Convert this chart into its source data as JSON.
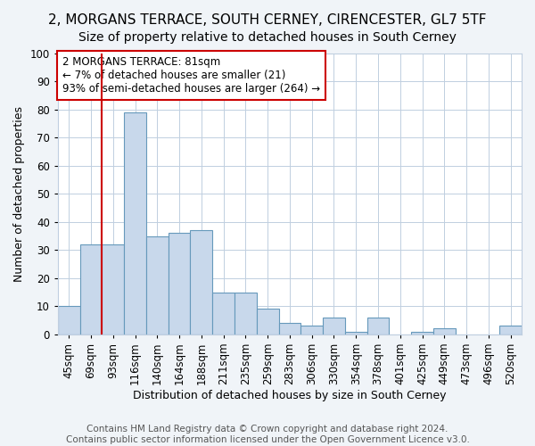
{
  "title1": "2, MORGANS TERRACE, SOUTH CERNEY, CIRENCESTER, GL7 5TF",
  "title2": "Size of property relative to detached houses in South Cerney",
  "xlabel": "Distribution of detached houses by size in South Cerney",
  "ylabel": "Number of detached properties",
  "categories": [
    "45sqm",
    "69sqm",
    "93sqm",
    "116sqm",
    "140sqm",
    "164sqm",
    "188sqm",
    "211sqm",
    "235sqm",
    "259sqm",
    "283sqm",
    "306sqm",
    "330sqm",
    "354sqm",
    "378sqm",
    "401sqm",
    "425sqm",
    "449sqm",
    "473sqm",
    "496sqm",
    "520sqm"
  ],
  "values": [
    10,
    32,
    32,
    79,
    35,
    36,
    37,
    15,
    15,
    9,
    4,
    3,
    6,
    1,
    6,
    0,
    1,
    2,
    0,
    0,
    3
  ],
  "bar_color": "#c8d8eb",
  "bar_edge_color": "#6699bb",
  "vline_color": "#cc0000",
  "vline_x": 1.5,
  "annotation_text": "2 MORGANS TERRACE: 81sqm\n← 7% of detached houses are smaller (21)\n93% of semi-detached houses are larger (264) →",
  "annotation_box_color": "#ffffff",
  "annotation_box_edge": "#cc0000",
  "ylim": [
    0,
    100
  ],
  "yticks": [
    0,
    10,
    20,
    30,
    40,
    50,
    60,
    70,
    80,
    90,
    100
  ],
  "footer1": "Contains HM Land Registry data © Crown copyright and database right 2024.",
  "footer2": "Contains public sector information licensed under the Open Government Licence v3.0.",
  "fig_background": "#f0f4f8",
  "plot_background": "#ffffff",
  "grid_color": "#c0cfe0",
  "title1_fontsize": 11,
  "title2_fontsize": 10,
  "xlabel_fontsize": 9,
  "ylabel_fontsize": 9,
  "tick_fontsize": 8.5,
  "annotation_fontsize": 8.5,
  "footer_fontsize": 7.5
}
